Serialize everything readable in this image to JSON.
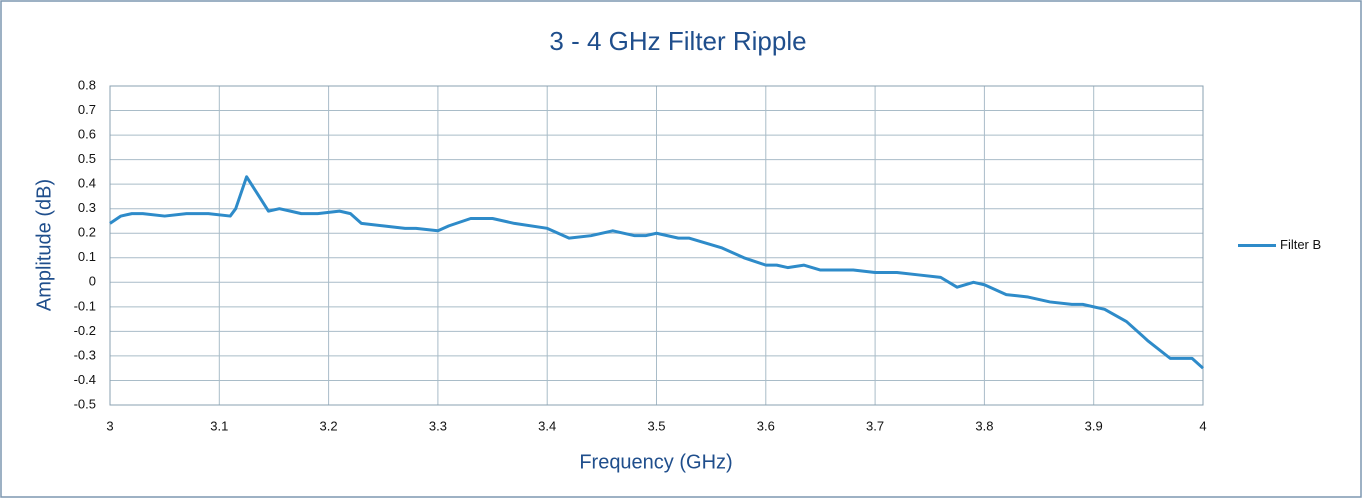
{
  "chart_data": {
    "type": "line",
    "title": "3 - 4 GHz Filter Ripple",
    "x_label": "Frequency (GHz)",
    "y_label": "Amplitude (dB)",
    "x": [
      3.0,
      3.01,
      3.02,
      3.03,
      3.05,
      3.07,
      3.09,
      3.11,
      3.115,
      3.125,
      3.135,
      3.145,
      3.155,
      3.165,
      3.175,
      3.19,
      3.21,
      3.22,
      3.23,
      3.25,
      3.27,
      3.28,
      3.3,
      3.31,
      3.33,
      3.35,
      3.37,
      3.4,
      3.42,
      3.44,
      3.46,
      3.48,
      3.49,
      3.5,
      3.52,
      3.53,
      3.56,
      3.58,
      3.6,
      3.61,
      3.62,
      3.635,
      3.65,
      3.68,
      3.7,
      3.72,
      3.74,
      3.76,
      3.775,
      3.79,
      3.8,
      3.82,
      3.84,
      3.86,
      3.88,
      3.89,
      3.91,
      3.93,
      3.95,
      3.97,
      3.98,
      3.99,
      4.0
    ],
    "series": [
      {
        "name": "Filter B",
        "color": "#2e8bc9",
        "values": [
          0.24,
          0.27,
          0.28,
          0.28,
          0.27,
          0.28,
          0.28,
          0.27,
          0.3,
          0.43,
          0.36,
          0.29,
          0.3,
          0.29,
          0.28,
          0.28,
          0.29,
          0.28,
          0.24,
          0.23,
          0.22,
          0.22,
          0.21,
          0.23,
          0.26,
          0.26,
          0.24,
          0.22,
          0.18,
          0.19,
          0.21,
          0.19,
          0.19,
          0.2,
          0.18,
          0.18,
          0.14,
          0.1,
          0.07,
          0.07,
          0.06,
          0.07,
          0.05,
          0.05,
          0.04,
          0.04,
          0.03,
          0.02,
          -0.02,
          0.0,
          -0.01,
          -0.05,
          -0.06,
          -0.08,
          -0.09,
          -0.09,
          -0.11,
          -0.16,
          -0.24,
          -0.31,
          -0.31,
          -0.31,
          -0.35
        ]
      }
    ],
    "xlim": [
      3,
      4
    ],
    "xticks": [
      3,
      3.1,
      3.2,
      3.3,
      3.4,
      3.5,
      3.6,
      3.7,
      3.8,
      3.9,
      4
    ],
    "ylim": [
      -0.5,
      0.8
    ],
    "yticks": [
      -0.5,
      -0.4,
      -0.3,
      -0.2,
      -0.1,
      0,
      0.1,
      0.2,
      0.3,
      0.4,
      0.5,
      0.6,
      0.7,
      0.8
    ],
    "grid": true,
    "legend": "right"
  }
}
